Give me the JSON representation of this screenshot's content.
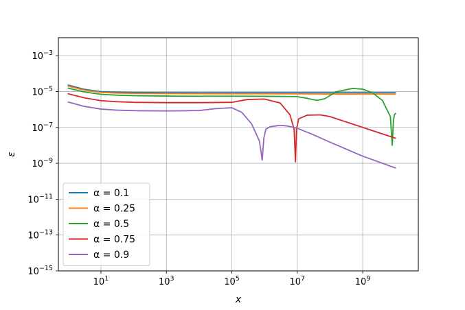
{
  "chart_data": {
    "type": "line",
    "title": "",
    "xlabel": "x",
    "ylabel": "ε",
    "xscale": "log",
    "yscale": "log",
    "xlim": [
      0.5,
      50000000000
    ],
    "ylim": [
      1e-15,
      0.01
    ],
    "xticks": [
      {
        "value": 10,
        "base": "10",
        "exp": "1"
      },
      {
        "value": 1000,
        "base": "10",
        "exp": "3"
      },
      {
        "value": 100000,
        "base": "10",
        "exp": "5"
      },
      {
        "value": 10000000,
        "base": "10",
        "exp": "7"
      },
      {
        "value": 1000000000,
        "base": "10",
        "exp": "9"
      }
    ],
    "yticks": [
      {
        "value": 1e-15,
        "base": "10",
        "exp": "−15"
      },
      {
        "value": 1e-13,
        "base": "10",
        "exp": "−13"
      },
      {
        "value": 1e-11,
        "base": "10",
        "exp": "−11"
      },
      {
        "value": 1e-09,
        "base": "10",
        "exp": "−9"
      },
      {
        "value": 1e-07,
        "base": "10",
        "exp": "−7"
      },
      {
        "value": 1e-05,
        "base": "10",
        "exp": "−5"
      },
      {
        "value": 0.001,
        "base": "10",
        "exp": "−3"
      }
    ],
    "grid": true,
    "legend_position": "lower-left",
    "series": [
      {
        "name": "α = 0.1",
        "color": "#1f77b4",
        "x": [
          1,
          3,
          10,
          30,
          100,
          1000,
          10000,
          100000,
          1000000,
          10000000,
          100000000,
          1000000000,
          10000000000
        ],
        "y": [
          2.3e-05,
          1.35e-05,
          9.8e-06,
          9.2e-06,
          8.9e-06,
          8.7e-06,
          8.6e-06,
          8.6e-06,
          8.6e-06,
          8.6e-06,
          8.6e-06,
          8.6e-06,
          8.6e-06
        ]
      },
      {
        "name": "α = 0.25",
        "color": "#ff7f0e",
        "x": [
          1,
          3,
          10,
          30,
          100,
          1000,
          10000,
          100000,
          1000000,
          10000000,
          100000000,
          1000000000,
          10000000000
        ],
        "y": [
          2e-05,
          1.2e-05,
          8.8e-06,
          8.2e-06,
          7.9e-06,
          7.7e-06,
          7.6e-06,
          7.5e-06,
          7.5e-06,
          7.4e-06,
          7.3e-06,
          7.3e-06,
          7.2e-06
        ]
      },
      {
        "name": "α = 0.5",
        "color": "#2ca02c",
        "x": [
          1,
          3,
          10,
          30,
          100,
          1000,
          10000,
          100000,
          1000000,
          10000000,
          20000000,
          40000000,
          70000000,
          150000000,
          500000000,
          1000000000,
          2000000000,
          4000000000,
          7000000000,
          8000000000,
          8700000000,
          9300000000,
          10000000000
        ],
        "y": [
          1.55e-05,
          9.5e-06,
          7e-06,
          6.3e-06,
          5.9e-06,
          5.6e-06,
          5.5e-06,
          5.5e-06,
          5.4e-06,
          5.2e-06,
          4.2e-06,
          3.2e-06,
          4e-06,
          9.5e-06,
          1.5e-05,
          1.35e-05,
          8.5e-06,
          3.2e-06,
          4e-07,
          1e-08,
          2.5e-07,
          5e-07,
          6e-07
        ]
      },
      {
        "name": "α = 0.75",
        "color": "#d62728",
        "x": [
          1,
          3,
          10,
          30,
          100,
          1000,
          10000,
          100000,
          300000,
          1000000,
          3000000,
          6000000,
          8000000,
          8800000,
          9500000,
          11000000,
          20000000,
          50000000,
          100000000,
          1000000000,
          10000000000
        ],
        "y": [
          7.5e-06,
          4.5e-06,
          3.1e-06,
          2.7e-06,
          2.5e-06,
          2.4e-06,
          2.4e-06,
          2.5e-06,
          3.6e-06,
          3.8e-06,
          2.3e-06,
          5e-07,
          8e-08,
          1.2e-09,
          8e-08,
          3e-07,
          4.8e-07,
          5e-07,
          4e-07,
          1e-07,
          2.5e-08
        ]
      },
      {
        "name": "α = 0.9",
        "color": "#9467bd",
        "x": [
          1,
          3,
          10,
          30,
          100,
          1000,
          10000,
          30000,
          100000,
          200000,
          400000,
          700000,
          850000,
          950000,
          1100000,
          1500000,
          3000000,
          5000000,
          10000000,
          30000000,
          100000000,
          1000000000,
          10000000000
        ],
        "y": [
          2.6e-06,
          1.5e-06,
          1.05e-06,
          9.2e-07,
          8.6e-07,
          8.3e-07,
          8.7e-07,
          1.1e-06,
          1.25e-06,
          7e-07,
          1.6e-07,
          1.7e-08,
          1.5e-09,
          2.5e-08,
          8e-08,
          1.1e-07,
          1.3e-07,
          1.2e-07,
          9e-08,
          4e-08,
          1.5e-08,
          2.5e-09,
          5.5e-10
        ]
      }
    ]
  }
}
